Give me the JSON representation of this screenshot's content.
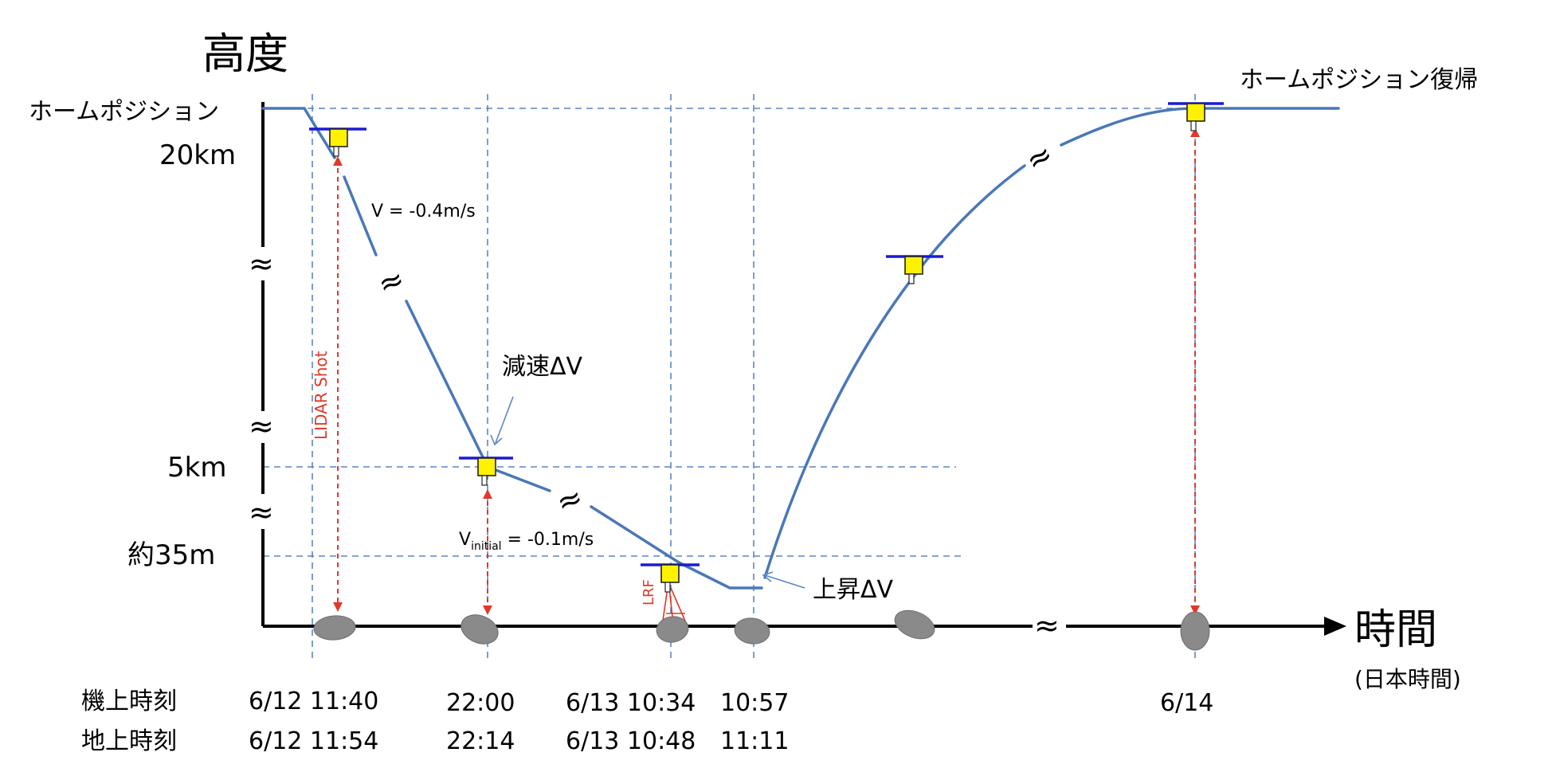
{
  "axes": {
    "y_title": "高度",
    "x_title": "時間",
    "x_subtitle": "(日本時間)"
  },
  "altitude_labels": {
    "home_position": "ホームポジション",
    "km20": "20km",
    "km5": "5km",
    "m35": "約35m"
  },
  "annotations": {
    "home_return": "ホームポジション復帰",
    "velocity": "V = -0.4m/s",
    "v_initial_prefix": "V",
    "v_initial_sub": "initial",
    "v_initial_suffix": " = -0.1m/s",
    "decel": "減速ΔV",
    "ascent": "上昇ΔV",
    "lidar": "LIDAR Shot",
    "lrf": "LRF",
    "wave": "≈"
  },
  "times": {
    "onboard_label": "機上時刻",
    "ground_label": "地上時刻",
    "onboard": [
      "6/12 11:40",
      "22:00",
      "6/13 10:34",
      "10:57",
      "6/14"
    ],
    "ground": [
      "6/12 11:54",
      "22:14",
      "6/13 10:48",
      "11:11"
    ]
  },
  "colors": {
    "trajectory": "#4a78b8",
    "guide": "#5b86c4",
    "lidar": "#e0382b",
    "probe_body": "#fff200",
    "probe_bar": "#1a1ad6",
    "asteroid": "#8a8a8a"
  }
}
